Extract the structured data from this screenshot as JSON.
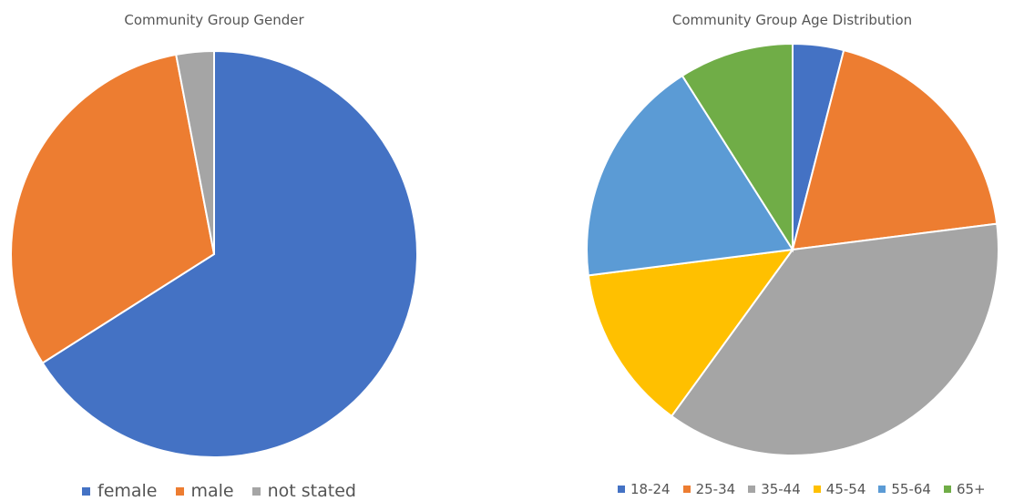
{
  "chart_data": [
    {
      "type": "pie",
      "title": "Community Group Gender",
      "categories": [
        "female",
        "male",
        "not stated"
      ],
      "values": [
        66,
        31,
        3
      ],
      "colors": [
        "#4472C4",
        "#ED7D31",
        "#A5A5A5"
      ],
      "legend_position": "bottom"
    },
    {
      "type": "pie",
      "title": "Community Group Age Distribution",
      "categories": [
        "18-24",
        "25-34",
        "35-44",
        "45-54",
        "55-64",
        "65+"
      ],
      "values": [
        4,
        19,
        37,
        13,
        18,
        9
      ],
      "colors": [
        "#4472C4",
        "#ED7D31",
        "#A5A5A5",
        "#FFC000",
        "#5B9BD5",
        "#70AD47"
      ],
      "legend_position": "bottom"
    }
  ]
}
